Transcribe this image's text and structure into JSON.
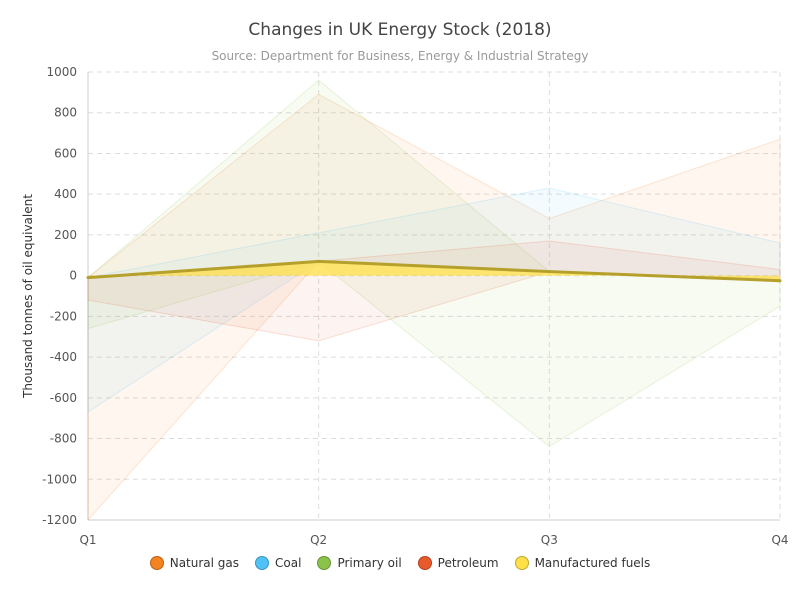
{
  "title": "Changes in UK Energy Stock (2018)",
  "subtitle": "Source: Department for Business, Energy & Industrial Strategy",
  "chart_data": {
    "type": "area",
    "title": "Changes in UK Energy Stock (2018)",
    "subtitle": "Source: Department for Business, Energy & Industrial Strategy",
    "xlabel": "",
    "ylabel": "Thousand tonnes of oil equivalent",
    "categories": [
      "Q1",
      "Q2",
      "Q3",
      "Q4"
    ],
    "ylim": [
      -1200,
      1000
    ],
    "ytick_step": 200,
    "grid": true,
    "legend_position": "bottom",
    "series": [
      {
        "name": "Natural gas",
        "color": "#f58220",
        "ranges": [
          [
            -1200,
            -10
          ],
          [
            70,
            890
          ],
          [
            20,
            280
          ],
          [
            -20,
            670
          ]
        ]
      },
      {
        "name": "Coal",
        "color": "#4fc3f7",
        "ranges": [
          [
            -670,
            -10
          ],
          [
            70,
            210
          ],
          [
            20,
            430
          ],
          [
            -20,
            160
          ]
        ]
      },
      {
        "name": "Primary oil",
        "color": "#8bc34a",
        "ranges": [
          [
            -260,
            -10
          ],
          [
            70,
            960
          ],
          [
            -840,
            20
          ],
          [
            -150,
            -20
          ]
        ]
      },
      {
        "name": "Petroleum",
        "color": "#e85a2c",
        "ranges": [
          [
            -120,
            -10
          ],
          [
            -320,
            70
          ],
          [
            20,
            170
          ],
          [
            -20,
            30
          ]
        ]
      },
      {
        "name": "Manufactured fuels",
        "color": "#ffe047",
        "values": [
          -10,
          70,
          20,
          -25
        ],
        "line_color": "#b5a02c"
      }
    ]
  }
}
